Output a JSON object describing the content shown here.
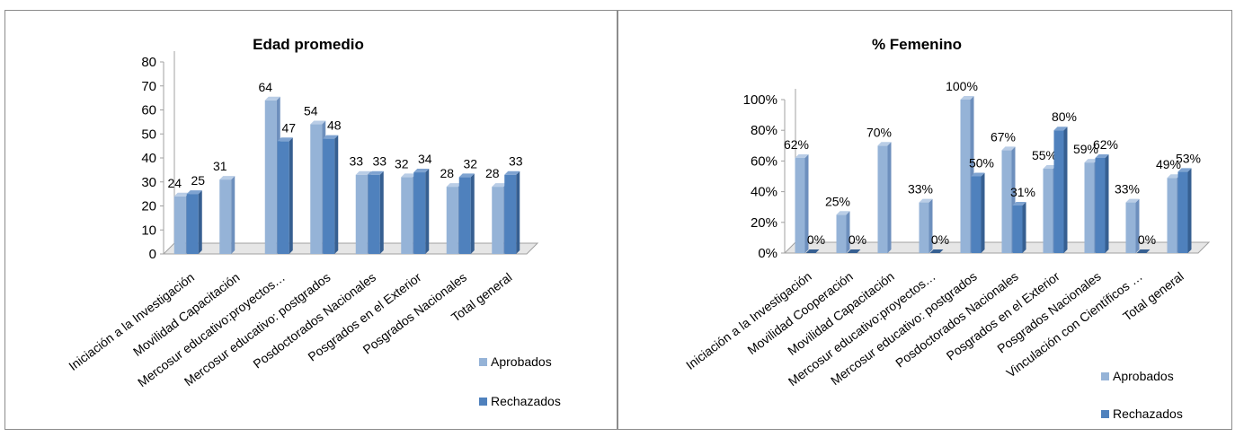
{
  "colors": {
    "aprobados_front": "#95b3d7",
    "aprobados_side": "#6d8fbd",
    "aprobados_top": "#b9cde6",
    "rechazados_front": "#4f81bd",
    "rechazados_side": "#365f91",
    "rechazados_top": "#7ea3d1",
    "floor": "#e6e6e6",
    "axis": "#a0a0a0"
  },
  "chart_data": [
    {
      "type": "bar",
      "title": "Edad promedio",
      "categories": [
        "Iniciación a la Investigación",
        "Movilidad Capacitación",
        "Mercosur educativo:proyectos…",
        "Mercosur educativo: postgrados",
        "Posdoctorados Nacionales",
        "Posgrados en el Exterior",
        "Posgrados Nacionales",
        "Total general"
      ],
      "series": [
        {
          "name": "Aprobados",
          "values": [
            24,
            31,
            64,
            54,
            33,
            32,
            28,
            28
          ],
          "labels": [
            "24",
            "31",
            "64",
            "54",
            "33",
            "32",
            "28",
            "28"
          ]
        },
        {
          "name": "Rechazados",
          "values": [
            25,
            null,
            47,
            48,
            33,
            34,
            32,
            33
          ],
          "labels": [
            "25",
            "",
            "47",
            "48",
            "33",
            "34",
            "32",
            "33"
          ]
        }
      ],
      "ylim": [
        0,
        80
      ],
      "yticks": [
        "0",
        "10",
        "20",
        "30",
        "40",
        "50",
        "60",
        "70",
        "80"
      ],
      "legend": "right",
      "grid": false
    },
    {
      "type": "bar",
      "title": "% Femenino",
      "categories": [
        "Iniciación a la Investigación",
        "Movilidad Cooperación",
        "Movilidad Capacitación",
        "Mercosur educativo:proyectos…",
        "Mercosur educativo: postgrados",
        "Posdoctorados Nacionales",
        "Posgrados en el Exterior",
        "Posgrados Nacionales",
        "Vinculación con Científicos …",
        "Total general"
      ],
      "series": [
        {
          "name": "Aprobados",
          "values": [
            62,
            25,
            70,
            33,
            100,
            67,
            55,
            59,
            33,
            49
          ],
          "labels": [
            "62%",
            "25%",
            "70%",
            "33%",
            "100%",
            "67%",
            "55%",
            "59%",
            "33%",
            "49%"
          ]
        },
        {
          "name": "Rechazados",
          "values": [
            0,
            0,
            null,
            0,
            50,
            31,
            80,
            62,
            0,
            53
          ],
          "labels": [
            "0%",
            "0%",
            "",
            "0%",
            "50%",
            "31%",
            "80%",
            "62%",
            "0%",
            "53%"
          ]
        }
      ],
      "ylim": [
        0,
        100
      ],
      "yticks": [
        "0%",
        "20%",
        "40%",
        "60%",
        "80%",
        "100%"
      ],
      "legend": "right",
      "grid": false
    }
  ]
}
